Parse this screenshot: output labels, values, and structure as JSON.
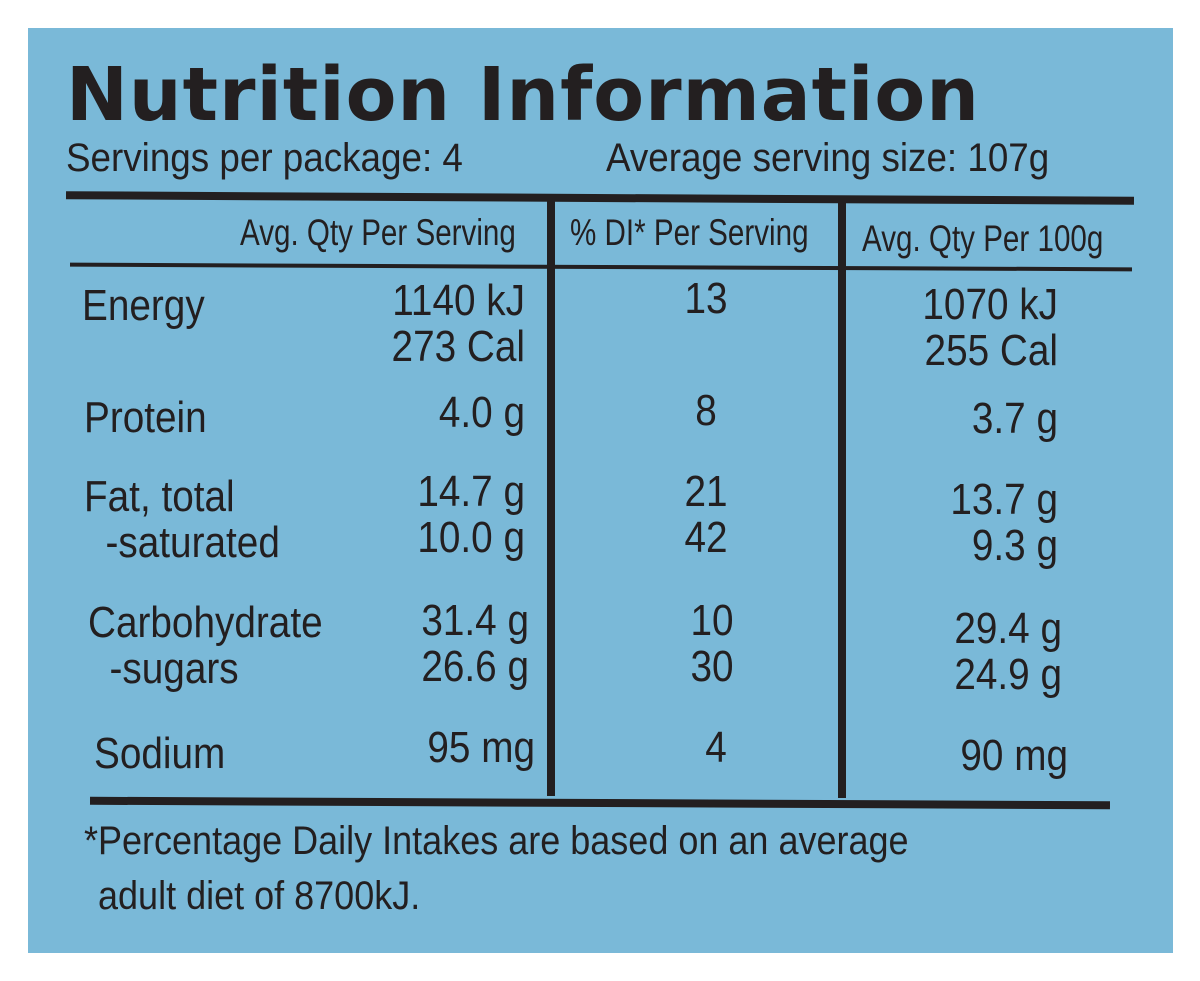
{
  "title": "Nutrition Information",
  "servings_per_package": "Servings per package: 4",
  "serving_size": "Average serving size: 107g",
  "headers": {
    "per_serving": "Avg. Qty Per Serving",
    "di_per_serving": "% DI* Per Serving",
    "per_100g": "Avg. Qty Per 100g"
  },
  "rows": {
    "energy": {
      "label": "Energy",
      "per_serving": "1140 kJ\n273 Cal",
      "di": "13",
      "per_100g": "1070 kJ\n255 Cal"
    },
    "protein": {
      "label": "Protein",
      "per_serving": "4.0 g",
      "di": "8",
      "per_100g": "3.7 g"
    },
    "fat": {
      "label": "Fat, total\n  -saturated",
      "per_serving": "14.7 g\n10.0 g",
      "di": "21\n42",
      "per_100g": "13.7 g\n9.3 g"
    },
    "carbohydrate": {
      "label": "Carbohydrate\n  -sugars",
      "per_serving": "31.4 g\n26.6 g",
      "di": "10\n30",
      "per_100g": "29.4 g\n24.9 g"
    },
    "sodium": {
      "label": "Sodium",
      "per_serving": "95 mg",
      "di": "4",
      "per_100g": "90 mg"
    }
  },
  "footnote_line1": "*Percentage Daily Intakes are based on an average",
  "footnote_line2": "adult diet of 8700kJ.",
  "colors": {
    "background": "#7ab9d8",
    "ink": "#231f20"
  }
}
